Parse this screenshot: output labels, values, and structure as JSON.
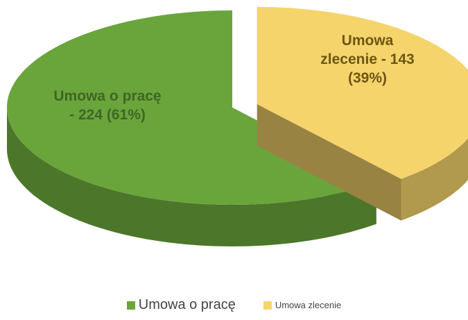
{
  "chart_data": {
    "type": "pie3d",
    "categories": [
      "Umowa o pracę",
      "Umowa zlecenie"
    ],
    "values": [
      224,
      143
    ],
    "value_labels": [
      "Umowa o pracę - 224 (61%)",
      "Umowa zlecenie - 143 (39%)"
    ],
    "colors": [
      "#6aa53c",
      "#f6d46c"
    ],
    "exploded": [
      false,
      true
    ],
    "legend": "bottom"
  }
}
